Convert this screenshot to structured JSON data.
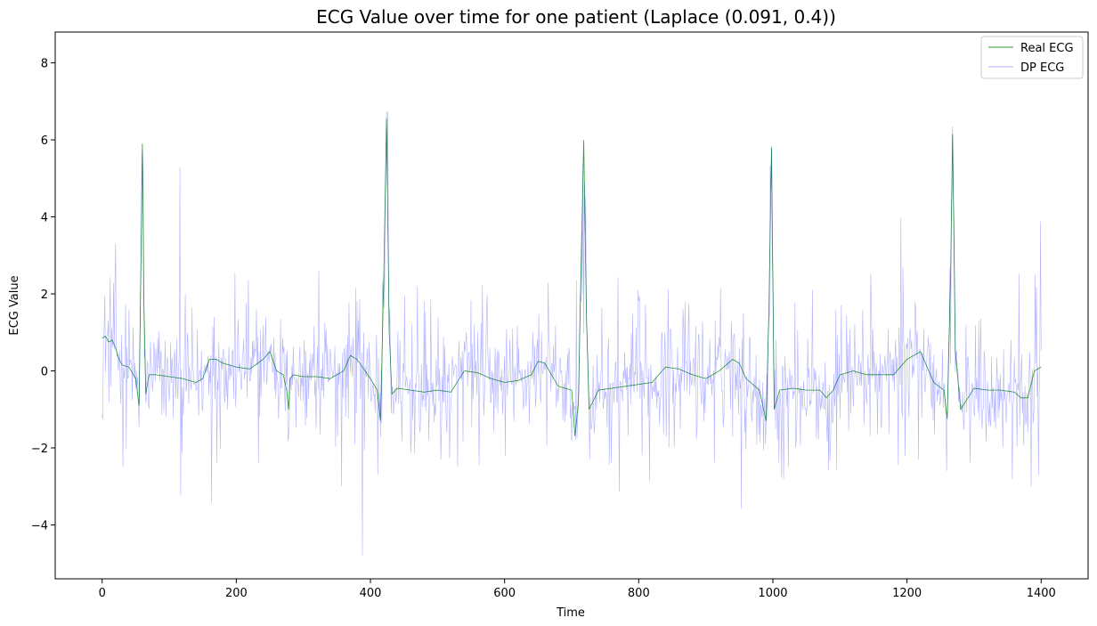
{
  "chart_data": {
    "type": "line",
    "title": "ECG Value over time for one patient (Laplace (0.091, 0.4))",
    "xlabel": "Time",
    "ylabel": "ECG Value",
    "xlim": [
      -70,
      1470
    ],
    "ylim": [
      -5.4,
      8.8
    ],
    "x_ticks": [
      0,
      200,
      400,
      600,
      800,
      1000,
      1200,
      1400
    ],
    "y_ticks": [
      -4,
      -2,
      0,
      2,
      4,
      6,
      8
    ],
    "x_tick_labels": [
      "0",
      "200",
      "400",
      "600",
      "800",
      "1000",
      "1200",
      "1400"
    ],
    "y_tick_labels": [
      "−4",
      "−2",
      "0",
      "2",
      "4",
      "6",
      "8"
    ],
    "grid": false,
    "legend_position": "top-right",
    "series": [
      {
        "name": "Real ECG",
        "color": "#2ca02c",
        "x": [
          0,
          5,
          10,
          15,
          20,
          25,
          30,
          40,
          50,
          55,
          58,
          60,
          62,
          65,
          70,
          80,
          100,
          120,
          140,
          150,
          160,
          170,
          180,
          200,
          220,
          240,
          250,
          260,
          270,
          275,
          278,
          280,
          285,
          300,
          320,
          340,
          360,
          370,
          380,
          400,
          410,
          415,
          420,
          424,
          428,
          432,
          440,
          460,
          480,
          500,
          520,
          540,
          560,
          580,
          600,
          620,
          640,
          650,
          660,
          680,
          700,
          705,
          710,
          715,
          718,
          722,
          726,
          740,
          760,
          780,
          800,
          820,
          840,
          860,
          880,
          900,
          920,
          940,
          950,
          960,
          980,
          990,
          994,
          998,
          1002,
          1010,
          1030,
          1050,
          1070,
          1080,
          1090,
          1100,
          1120,
          1140,
          1160,
          1180,
          1200,
          1220,
          1240,
          1255,
          1260,
          1265,
          1268,
          1272,
          1280,
          1300,
          1320,
          1340,
          1360,
          1370,
          1380,
          1390,
          1400
        ],
        "values": [
          0.85,
          0.9,
          0.75,
          0.8,
          0.6,
          0.3,
          0.15,
          0.1,
          -0.2,
          -0.9,
          3.0,
          5.9,
          2.0,
          -0.6,
          -0.1,
          -0.1,
          -0.15,
          -0.2,
          -0.3,
          -0.2,
          0.3,
          0.3,
          0.2,
          0.1,
          0.05,
          0.3,
          0.5,
          0.0,
          -0.1,
          -0.5,
          -1.0,
          -0.2,
          -0.1,
          -0.15,
          -0.15,
          -0.2,
          0.0,
          0.4,
          0.3,
          -0.2,
          -0.5,
          -1.3,
          2.5,
          6.55,
          1.0,
          -0.6,
          -0.45,
          -0.5,
          -0.55,
          -0.5,
          -0.55,
          0.0,
          -0.05,
          -0.2,
          -0.3,
          -0.25,
          -0.1,
          0.25,
          0.2,
          -0.4,
          -0.5,
          -1.7,
          -0.8,
          3.5,
          6.0,
          1.5,
          -1.0,
          -0.5,
          -0.45,
          -0.4,
          -0.35,
          -0.3,
          0.1,
          0.05,
          -0.1,
          -0.2,
          0.0,
          0.3,
          0.2,
          -0.2,
          -0.5,
          -1.3,
          1.5,
          5.8,
          -1.0,
          -0.5,
          -0.45,
          -0.5,
          -0.5,
          -0.7,
          -0.5,
          -0.1,
          0.0,
          -0.1,
          -0.1,
          -0.1,
          0.3,
          0.5,
          -0.3,
          -0.5,
          -1.25,
          2.5,
          6.15,
          0.5,
          -1.0,
          -0.45,
          -0.5,
          -0.5,
          -0.55,
          -0.7,
          -0.7,
          0.0,
          0.1
        ]
      },
      {
        "name": "DP ECG",
        "color": "#0000ff",
        "noise_seed": 12345,
        "noise_scale": 0.62
      }
    ]
  }
}
